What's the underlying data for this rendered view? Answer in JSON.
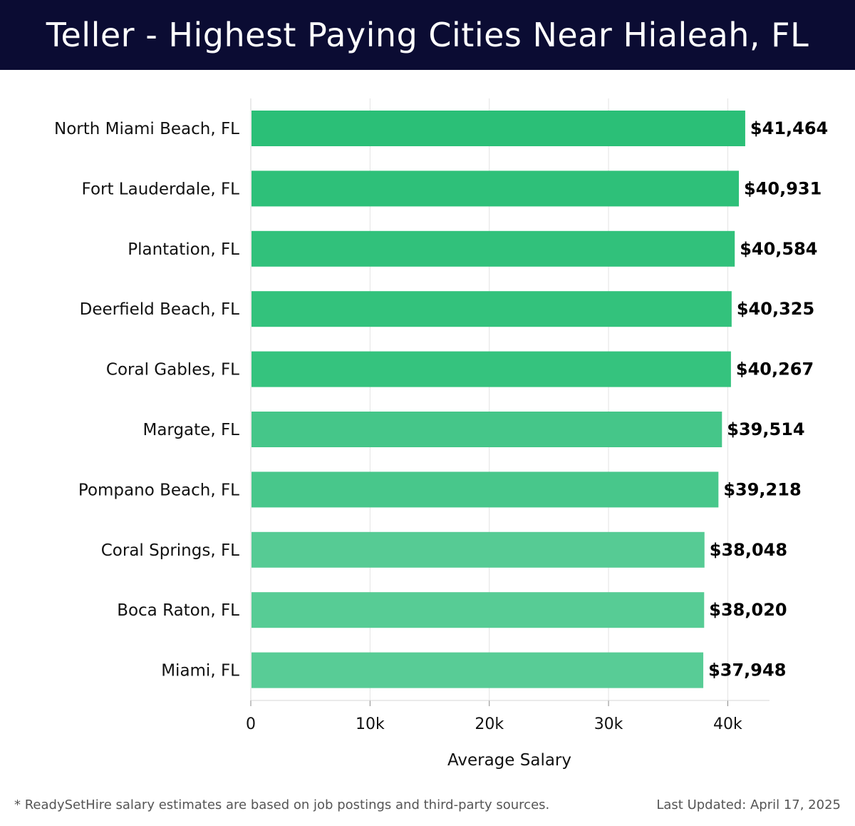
{
  "header": {
    "title": "Teller - Highest Paying Cities Near Hialeah, FL"
  },
  "chart_data": {
    "type": "bar",
    "orientation": "horizontal",
    "title": "Teller - Highest Paying Cities Near Hialeah, FL",
    "xlabel": "Average Salary",
    "ylabel": "",
    "xlim": [
      0,
      43500
    ],
    "xticks": [
      0,
      10000,
      20000,
      30000,
      40000
    ],
    "xtick_labels": [
      "0",
      "10k",
      "20k",
      "30k",
      "40k"
    ],
    "grid": "vertical",
    "categories": [
      "North Miami Beach, FL",
      "Fort Lauderdale, FL",
      "Plantation, FL",
      "Deerfield Beach, FL",
      "Coral Gables, FL",
      "Margate, FL",
      "Pompano Beach, FL",
      "Coral Springs, FL",
      "Boca Raton, FL",
      "Miami, FL"
    ],
    "values": [
      41464,
      40931,
      40584,
      40325,
      40267,
      39514,
      39218,
      38048,
      38020,
      37948
    ],
    "value_labels": [
      "$41,464",
      "$40,931",
      "$40,584",
      "$40,325",
      "$40,267",
      "$39,514",
      "$39,218",
      "$38,048",
      "$38,020",
      "$37,948"
    ],
    "bar_colors": [
      "#2bbf77",
      "#2ec079",
      "#31c17b",
      "#33c27c",
      "#35c37e",
      "#45c689",
      "#48c78b",
      "#56cb94",
      "#57cc95",
      "#58cc96"
    ]
  },
  "footer": {
    "note": "* ReadySetHire salary estimates are based on job postings and third-party sources.",
    "updated": "Last Updated: April 17, 2025"
  }
}
